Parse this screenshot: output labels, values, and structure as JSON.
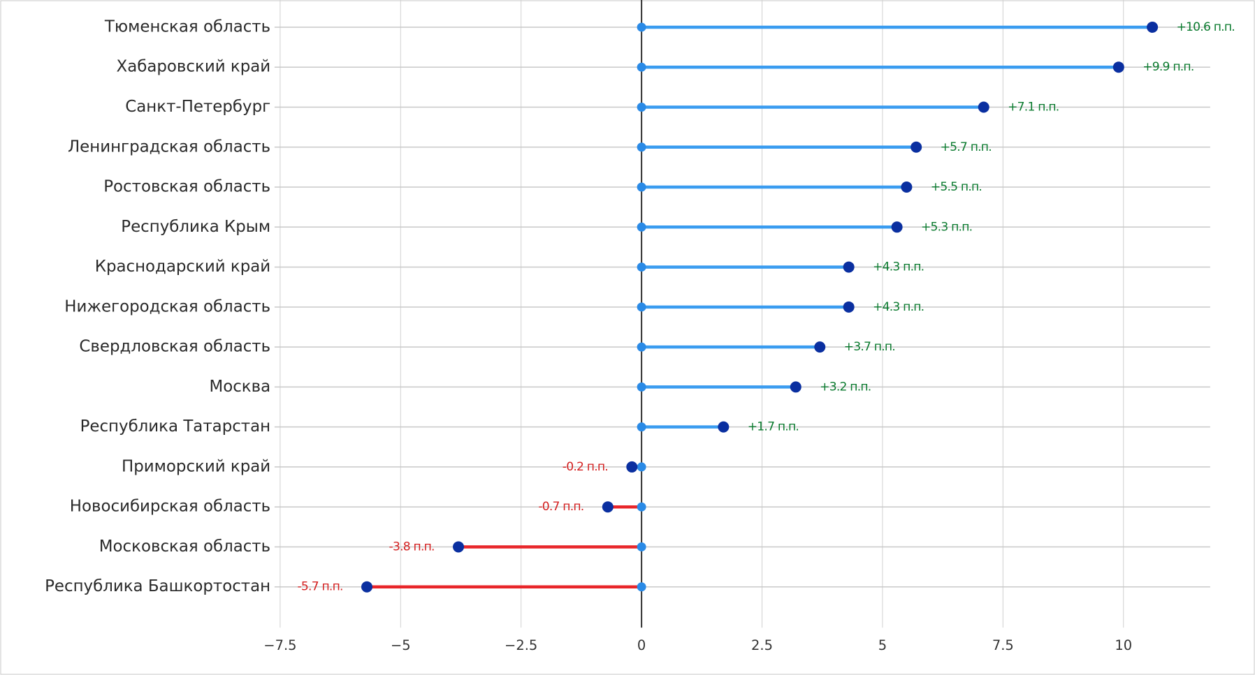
{
  "chart_data": {
    "type": "lollipop",
    "categories": [
      "Тюменская область",
      "Хабаровский край",
      "Санкт-Петербург",
      "Ленинградская область",
      "Ростовская область",
      "Республика Крым",
      "Краснодарский край",
      "Нижегородская область",
      "Свердловская область",
      "Москва",
      "Республика Татарстан",
      "Приморский край",
      "Новосибирская область",
      "Московская область",
      "Республика Башкортостан"
    ],
    "values": [
      10.6,
      9.9,
      7.1,
      5.7,
      5.5,
      5.3,
      4.3,
      4.3,
      3.7,
      3.2,
      1.7,
      -0.2,
      -0.7,
      -3.8,
      -5.7
    ],
    "value_labels": [
      "+10.6 п.п.",
      "+9.9 п.п.",
      "+7.1 п.п.",
      "+5.7 п.п.",
      "+5.5 п.п.",
      "+5.3 п.п.",
      "+4.3 п.п.",
      "+4.3 п.п.",
      "+3.7 п.п.",
      "+3.2 п.п.",
      "+1.7 п.п.",
      "-0.2 п.п.",
      "-0.7 п.п.",
      "-3.8 п.п.",
      "-5.7 п.п."
    ],
    "xlim": [
      -7.5,
      11.8
    ],
    "xticks": [
      {
        "value": -7.5,
        "label": "−7.5"
      },
      {
        "value": -5,
        "label": "−5"
      },
      {
        "value": -2.5,
        "label": "−2.5"
      },
      0,
      2.5,
      5,
      7.5,
      10
    ],
    "grid": true,
    "positive_color": "#3a9cf0",
    "negative_color": "#e8262a",
    "dot_color": "#0a2fa0",
    "base_color": "#2a8ae6",
    "positive_label_color": "#0a7a2e",
    "negative_label_color": "#d42020"
  }
}
